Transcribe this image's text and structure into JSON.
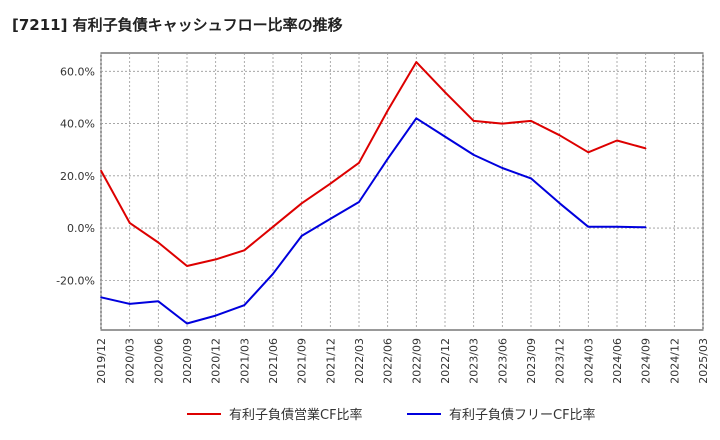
{
  "chart_data": {
    "type": "line",
    "title": "[7211]  有利子負債キャッシュフロー比率の推移",
    "x_ticks": [
      "2019/12",
      "2020/03",
      "2020/06",
      "2020/09",
      "2020/12",
      "2021/03",
      "2021/06",
      "2021/09",
      "2021/12",
      "2022/03",
      "2022/06",
      "2022/09",
      "2022/12",
      "2023/03",
      "2023/06",
      "2023/09",
      "2023/12",
      "2024/03",
      "2024/06",
      "2024/09",
      "2024/12",
      "2025/03"
    ],
    "y_ticks": [
      "60.0%",
      "40.0%",
      "20.0%",
      "0.0%",
      "-20.0%"
    ],
    "y_tick_values": [
      60,
      40,
      20,
      0,
      -20
    ],
    "ylim": [
      -39,
      67
    ],
    "grid": true,
    "series": [
      {
        "name": "有利子負債営業CF比率",
        "color": "#dd0000",
        "x": [
          "2019/12",
          "2020/03",
          "2020/06",
          "2020/09",
          "2020/12",
          "2021/03",
          "2021/06",
          "2021/09",
          "2021/12",
          "2022/03",
          "2022/06",
          "2022/09",
          "2022/12",
          "2023/03",
          "2023/06",
          "2023/09",
          "2023/12",
          "2024/03",
          "2024/06",
          "2024/09"
        ],
        "values": [
          22.0,
          2.0,
          -5.5,
          -14.5,
          -12.0,
          -8.5,
          0.5,
          9.5,
          17.0,
          25.0,
          45.0,
          63.5,
          52.0,
          41.0,
          40.0,
          41.0,
          35.5,
          29.0,
          33.5,
          30.5
        ]
      },
      {
        "name": "有利子負債フリーCF比率",
        "color": "#0000dd",
        "x": [
          "2019/12",
          "2020/03",
          "2020/06",
          "2020/09",
          "2020/12",
          "2021/03",
          "2021/06",
          "2021/09",
          "2021/12",
          "2022/03",
          "2022/06",
          "2022/09",
          "2022/12",
          "2023/03",
          "2023/06",
          "2023/09",
          "2023/12",
          "2024/03",
          "2024/06",
          "2024/09"
        ],
        "values": [
          -26.5,
          -29.0,
          -28.0,
          -36.5,
          -33.5,
          -29.5,
          -17.5,
          -3.0,
          3.5,
          10.0,
          26.5,
          42.0,
          35.0,
          28.0,
          23.0,
          19.0,
          9.5,
          0.5,
          0.5,
          0.3
        ]
      }
    ]
  }
}
